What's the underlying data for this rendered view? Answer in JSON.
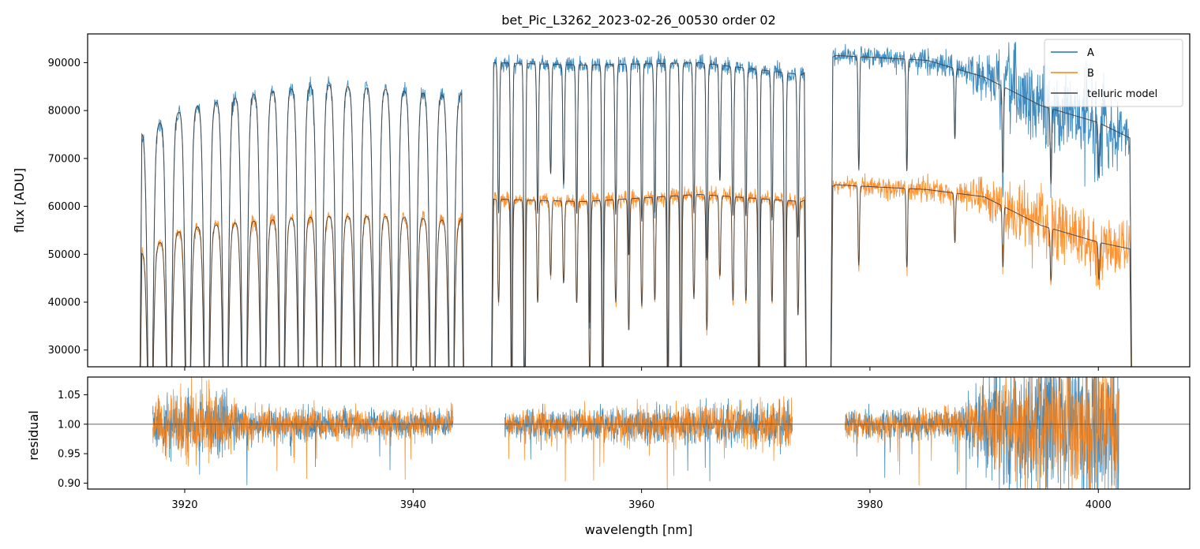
{
  "chart_data": [
    {
      "type": "line",
      "title": "bet_Pic_L3262_2023-02-26_00530  order 02",
      "xlabel": "",
      "ylabel": "flux [ADU]",
      "xlim": [
        3911.5,
        4008.0
      ],
      "ylim": [
        26500,
        96000
      ],
      "yticks": [
        30000,
        40000,
        50000,
        60000,
        70000,
        80000,
        90000
      ],
      "ytick_labels": [
        "30000",
        "40000",
        "50000",
        "60000",
        "70000",
        "80000",
        "90000"
      ],
      "xticks": [
        3920,
        3940,
        3960,
        3980,
        4000
      ],
      "legend_position": "top-right",
      "segments": [
        {
          "x": [
            3916.0,
            3944.5
          ],
          "lines": 17
        },
        {
          "x": [
            3946.8,
            3974.5
          ],
          "lines": 24
        },
        {
          "x": [
            3976.5,
            4003.0
          ],
          "lines": 6
        }
      ],
      "series": [
        {
          "name": "A",
          "color": "#1f77b4",
          "continuum": [
            [
              3916,
              75000
            ],
            [
              3920,
              80500
            ],
            [
              3926,
              83500
            ],
            [
              3932,
              85500
            ],
            [
              3938,
              84500
            ],
            [
              3944,
              83000
            ],
            [
              3947,
              90000
            ],
            [
              3955,
              89500
            ],
            [
              3965,
              90000
            ],
            [
              3974,
              87500
            ],
            [
              3977,
              91500
            ],
            [
              3985,
              90500
            ],
            [
              3990,
              87000
            ],
            [
              3995,
              81000
            ],
            [
              4000,
              77500
            ],
            [
              4003,
              74000
            ]
          ],
          "noise": [
            [
              3916,
              900
            ],
            [
              3944,
              900
            ],
            [
              3947,
              800
            ],
            [
              3974,
              900
            ],
            [
              3977,
              900
            ],
            [
              3988,
              1300
            ],
            [
              3992,
              4000
            ],
            [
              4000,
              5000
            ],
            [
              4003,
              2000
            ]
          ]
        },
        {
          "name": "B",
          "color": "#ff7f0e",
          "continuum": [
            [
              3916,
              50000
            ],
            [
              3920,
              55500
            ],
            [
              3926,
              57000
            ],
            [
              3932,
              58000
            ],
            [
              3938,
              58000
            ],
            [
              3944,
              57000
            ],
            [
              3947,
              61500
            ],
            [
              3955,
              61000
            ],
            [
              3965,
              62500
            ],
            [
              3974,
              61000
            ],
            [
              3977,
              64500
            ],
            [
              3985,
              63500
            ],
            [
              3990,
              62000
            ],
            [
              3995,
              56000
            ],
            [
              4000,
              52500
            ],
            [
              4003,
              51000
            ]
          ],
          "noise": [
            [
              3916,
              700
            ],
            [
              3944,
              700
            ],
            [
              3947,
              700
            ],
            [
              3974,
              900
            ],
            [
              3977,
              900
            ],
            [
              3988,
              1300
            ],
            [
              3992,
              3000
            ],
            [
              4000,
              4000
            ],
            [
              4003,
              2000
            ]
          ]
        },
        {
          "name": "telluric model",
          "color": "#404040"
        }
      ]
    },
    {
      "type": "line",
      "title": "",
      "xlabel": "wavelength [nm]",
      "ylabel": "residual",
      "xlim": [
        3911.5,
        4008.0
      ],
      "ylim": [
        0.89,
        1.08
      ],
      "yticks": [
        0.9,
        0.95,
        1.0,
        1.05
      ],
      "ytick_labels": [
        "0.90",
        "0.95",
        "1.00",
        "1.05"
      ],
      "xticks": [
        3920,
        3940,
        3960,
        3980,
        4000
      ],
      "xtick_labels": [
        "3920",
        "3940",
        "3960",
        "3980",
        "4000"
      ],
      "reference_line": 1.0,
      "segments": [
        [
          3917.2,
          3943.5
        ],
        [
          3948.0,
          3973.2
        ],
        [
          3977.8,
          4001.8
        ]
      ],
      "series": [
        {
          "name": "A",
          "color": "#1f77b4",
          "noise": [
            [
              3917,
              0.018
            ],
            [
              3922,
              0.03
            ],
            [
              3926,
              0.014
            ],
            [
              3943,
              0.012
            ],
            [
              3948,
              0.012
            ],
            [
              3973,
              0.018
            ],
            [
              3978,
              0.012
            ],
            [
              3988,
              0.014
            ],
            [
              3991,
              0.05
            ],
            [
              4001,
              0.07
            ]
          ]
        },
        {
          "name": "B",
          "color": "#ff7f0e",
          "noise": [
            [
              3917,
              0.02
            ],
            [
              3922,
              0.035
            ],
            [
              3926,
              0.014
            ],
            [
              3943,
              0.012
            ],
            [
              3948,
              0.012
            ],
            [
              3973,
              0.02
            ],
            [
              3978,
              0.012
            ],
            [
              3988,
              0.014
            ],
            [
              3991,
              0.04
            ],
            [
              4001,
              0.06
            ]
          ]
        }
      ]
    }
  ]
}
